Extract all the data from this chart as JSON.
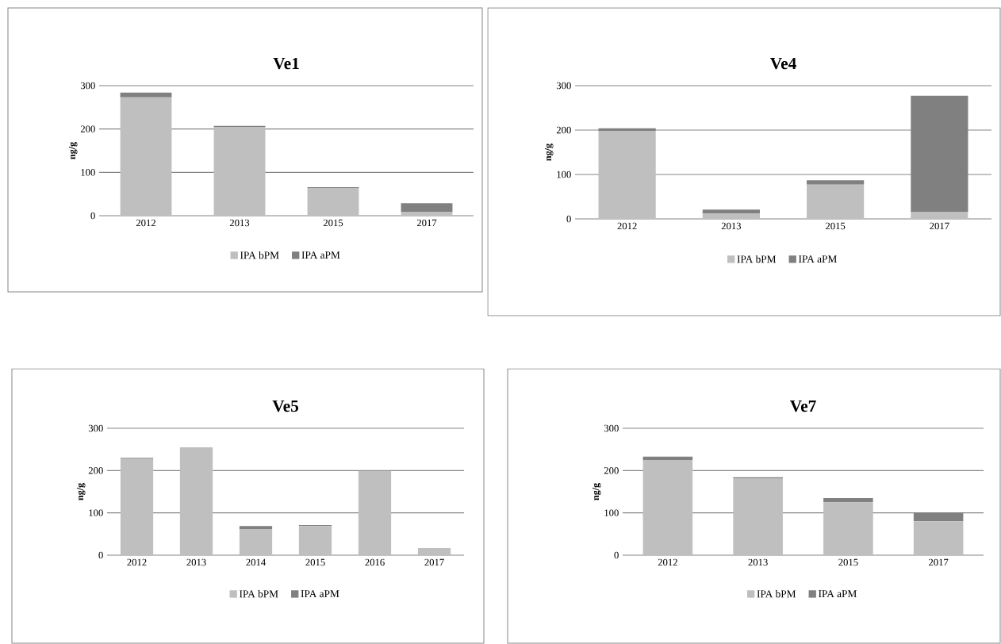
{
  "chart_data": [
    {
      "type": "bar",
      "title": "Ve1",
      "ylabel": "ng/g",
      "stacked": true,
      "categories": [
        "2012",
        "2013",
        "2015",
        "2017"
      ],
      "series": [
        {
          "name": "IPA bPM",
          "color": "#bfbfbf",
          "values": [
            273,
            205,
            64,
            8
          ]
        },
        {
          "name": "IPA aPM",
          "color": "#808080",
          "values": [
            11,
            2,
            2,
            21
          ]
        }
      ],
      "ylim": [
        0,
        300
      ],
      "yticks": [
        0,
        100,
        200,
        300
      ],
      "grid": "y",
      "legend": "bottom"
    },
    {
      "type": "bar",
      "title": "Ve4",
      "ylabel": "ng/g",
      "stacked": true,
      "categories": [
        "2012",
        "2013",
        "2015",
        "2017"
      ],
      "series": [
        {
          "name": "IPA bPM",
          "color": "#bfbfbf",
          "values": [
            198,
            12,
            77,
            15
          ]
        },
        {
          "name": "IPA aPM",
          "color": "#808080",
          "values": [
            6,
            9,
            10,
            262
          ]
        }
      ],
      "ylim": [
        0,
        300
      ],
      "yticks": [
        0,
        100,
        200,
        300
      ],
      "grid": "y",
      "legend": "bottom"
    },
    {
      "type": "bar",
      "title": "Ve5",
      "ylabel": "ng/g",
      "stacked": true,
      "categories": [
        "2012",
        "2013",
        "2014",
        "2015",
        "2016",
        "2017"
      ],
      "series": [
        {
          "name": "IPA bPM",
          "color": "#bfbfbf",
          "values": [
            228,
            252,
            61,
            69,
            199,
            14
          ]
        },
        {
          "name": "IPA aPM",
          "color": "#808080",
          "values": [
            2,
            2,
            8,
            2,
            1,
            2
          ]
        }
      ],
      "ylim": [
        0,
        300
      ],
      "yticks": [
        0,
        100,
        200,
        300
      ],
      "grid": "y",
      "legend": "bottom"
    },
    {
      "type": "bar",
      "title": "Ve7",
      "ylabel": "ng/g",
      "stacked": true,
      "categories": [
        "2012",
        "2013",
        "2015",
        "2017"
      ],
      "series": [
        {
          "name": "IPA bPM",
          "color": "#bfbfbf",
          "values": [
            225,
            182,
            125,
            80
          ]
        },
        {
          "name": "IPA aPM",
          "color": "#808080",
          "values": [
            8,
            2,
            10,
            20
          ]
        }
      ],
      "ylim": [
        0,
        300
      ],
      "yticks": [
        0,
        100,
        200,
        300
      ],
      "grid": "y",
      "legend": "bottom"
    }
  ]
}
